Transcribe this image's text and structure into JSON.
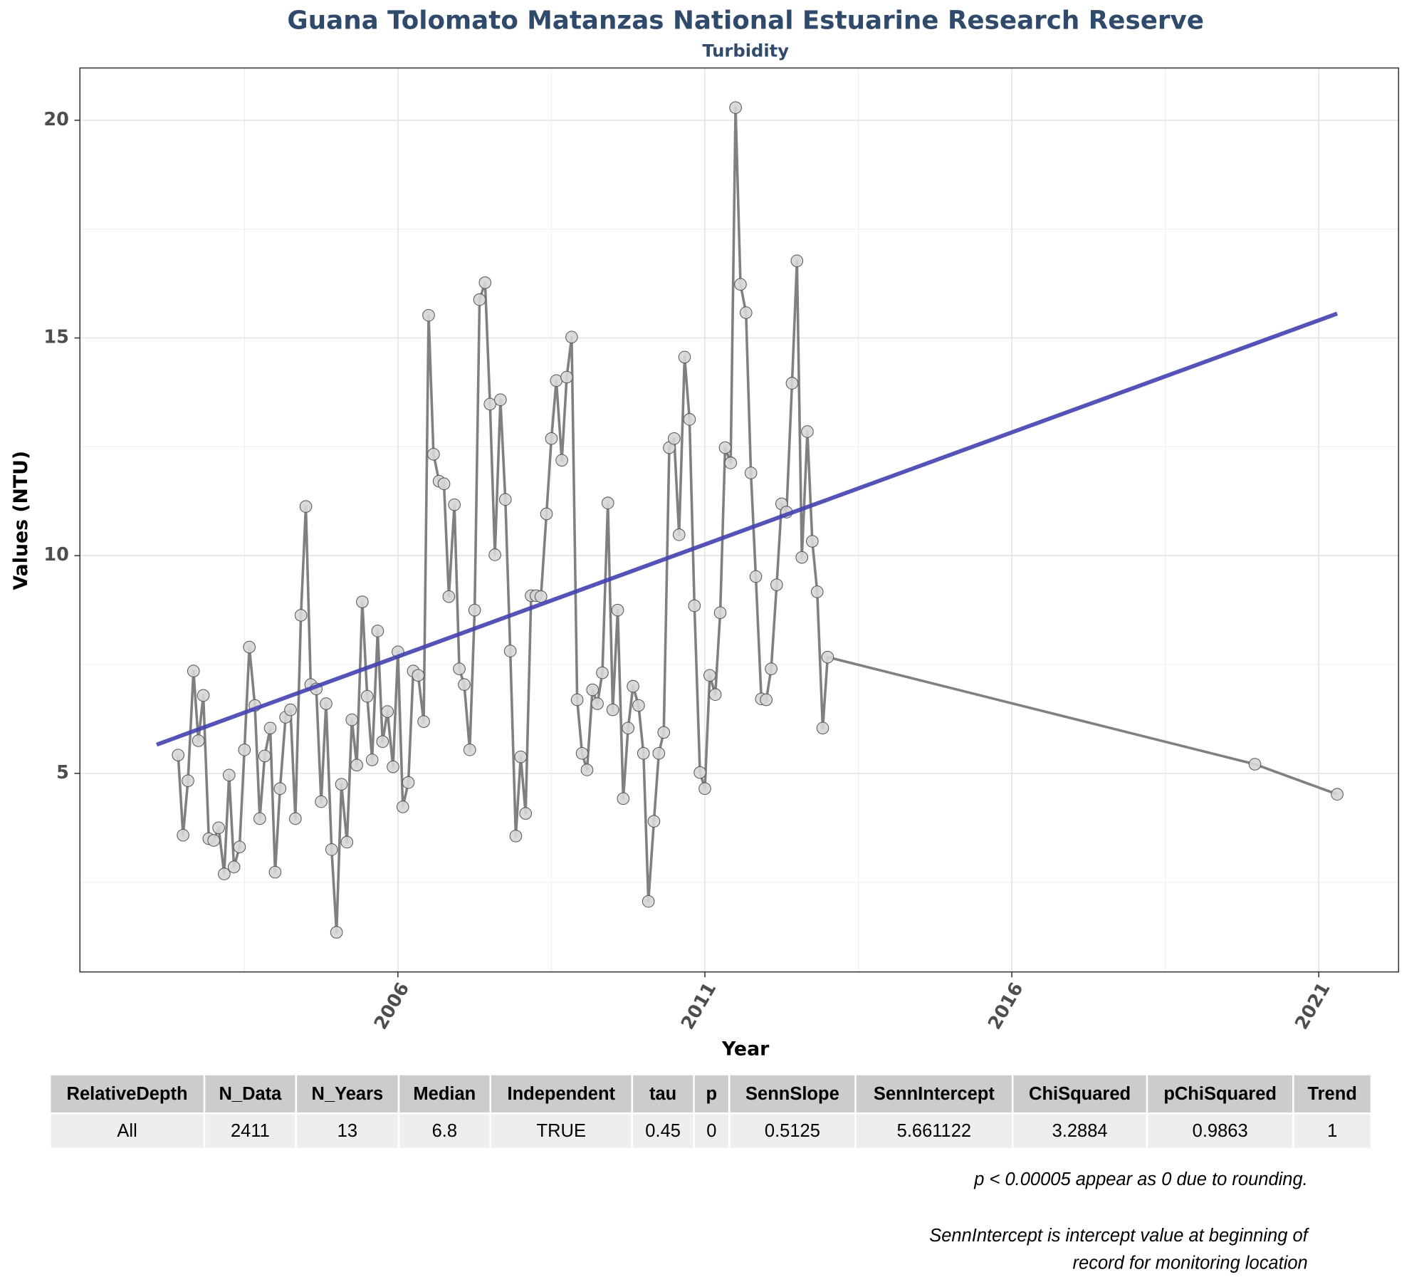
{
  "chart_data": {
    "type": "line",
    "title": "Guana Tolomato Matanzas National Estuarine Research Reserve",
    "subtitle": "Turbidity",
    "x_label": "Year",
    "y_label": "Values (NTU)",
    "xlim": [
      2000.82,
      2022.3
    ],
    "xticks": [
      2006,
      2011,
      2016,
      2021
    ],
    "ylim": [
      0.44,
      21.2
    ],
    "yticks": [
      5,
      10,
      15,
      20
    ],
    "grid": true,
    "series": [
      {
        "color": "#808080",
        "x": [
          2002.42,
          2002.5,
          2002.58,
          2002.67,
          2002.75,
          2002.83,
          2002.92,
          2003.0,
          2003.08,
          2003.17,
          2003.25,
          2003.33,
          2003.42,
          2003.5,
          2003.58,
          2003.67,
          2003.75,
          2003.83,
          2003.92,
          2004.0,
          2004.08,
          2004.17,
          2004.25,
          2004.33,
          2004.42,
          2004.5,
          2004.58,
          2004.67,
          2004.75,
          2004.83,
          2004.92,
          2005.0,
          2005.08,
          2005.17,
          2005.25,
          2005.33,
          2005.42,
          2005.5,
          2005.58,
          2005.67,
          2005.75,
          2005.83,
          2005.92,
          2006.0,
          2006.08,
          2006.17,
          2006.25,
          2006.33,
          2006.42,
          2006.5,
          2006.58,
          2006.67,
          2006.75,
          2006.83,
          2006.92,
          2007.0,
          2007.08,
          2007.17,
          2007.25,
          2007.33,
          2007.42,
          2007.5,
          2007.58,
          2007.67,
          2007.75,
          2007.83,
          2007.92,
          2008.0,
          2008.08,
          2008.17,
          2008.25,
          2008.33,
          2008.42,
          2008.5,
          2008.58,
          2008.67,
          2008.75,
          2008.83,
          2008.92,
          2009.0,
          2009.08,
          2009.17,
          2009.25,
          2009.33,
          2009.42,
          2009.5,
          2009.58,
          2009.67,
          2009.75,
          2009.83,
          2009.92,
          2010.0,
          2010.08,
          2010.17,
          2010.25,
          2010.33,
          2010.42,
          2010.5,
          2010.58,
          2010.67,
          2010.75,
          2010.83,
          2010.92,
          2011.0,
          2011.08,
          2011.17,
          2011.25,
          2011.33,
          2011.42,
          2011.5,
          2011.58,
          2011.67,
          2011.75,
          2011.83,
          2011.92,
          2012.0,
          2012.08,
          2012.17,
          2012.25,
          2012.33,
          2012.42,
          2012.5,
          2012.58,
          2012.67,
          2012.75,
          2012.83,
          2012.92,
          2013.0,
          2019.96,
          2021.3
        ],
        "values": [
          5.42,
          3.58,
          4.83,
          7.35,
          5.75,
          6.79,
          3.5,
          3.46,
          3.75,
          2.69,
          4.96,
          2.85,
          3.31,
          5.54,
          7.9,
          6.56,
          3.96,
          5.4,
          6.04,
          2.73,
          4.65,
          6.29,
          6.46,
          3.96,
          8.63,
          11.13,
          7.04,
          6.94,
          4.35,
          6.6,
          3.25,
          1.35,
          4.75,
          3.42,
          6.23,
          5.19,
          8.94,
          6.77,
          5.31,
          8.27,
          5.73,
          6.42,
          5.15,
          7.79,
          4.23,
          4.79,
          7.35,
          7.25,
          6.19,
          15.52,
          12.33,
          11.71,
          11.65,
          9.06,
          11.17,
          7.4,
          7.04,
          5.54,
          8.75,
          15.88,
          16.27,
          13.48,
          10.02,
          13.58,
          11.29,
          7.81,
          3.56,
          5.38,
          4.08,
          9.08,
          9.08,
          9.06,
          10.96,
          12.69,
          14.02,
          12.19,
          14.1,
          15.02,
          6.69,
          5.46,
          5.08,
          6.92,
          6.6,
          7.31,
          11.21,
          6.46,
          8.75,
          4.42,
          6.04,
          7.0,
          6.56,
          5.46,
          2.06,
          3.9,
          5.46,
          5.94,
          12.48,
          12.69,
          10.48,
          14.56,
          13.13,
          8.85,
          5.02,
          4.65,
          7.25,
          6.81,
          8.69,
          12.48,
          12.13,
          20.29,
          16.23,
          15.58,
          11.9,
          9.52,
          6.71,
          6.69,
          7.4,
          9.33,
          11.19,
          11.0,
          13.96,
          16.77,
          9.96,
          12.85,
          10.33,
          9.17,
          6.04,
          7.67,
          5.21,
          4.52
        ]
      }
    ],
    "trend_line": {
      "color": "#4040b0",
      "x": [
        2002.07,
        2021.3
      ],
      "values": [
        5.66,
        15.56
      ]
    }
  },
  "table": {
    "header": [
      "RelativeDepth",
      "N_Data",
      "N_Years",
      "Median",
      "Independent",
      "tau",
      "p",
      "SennSlope",
      "SennIntercept",
      "ChiSquared",
      "pChiSquared",
      "Trend"
    ],
    "rows": [
      [
        "All",
        "2411",
        "13",
        "6.8",
        "TRUE",
        "0.45",
        "0",
        "0.5125",
        "5.661122",
        "3.2884",
        "0.9863",
        "1"
      ]
    ]
  },
  "notes": [
    "p < 0.00005 appear as 0 due to rounding.",
    "SennIntercept is intercept value at beginning of",
    "record for monitoring location"
  ]
}
